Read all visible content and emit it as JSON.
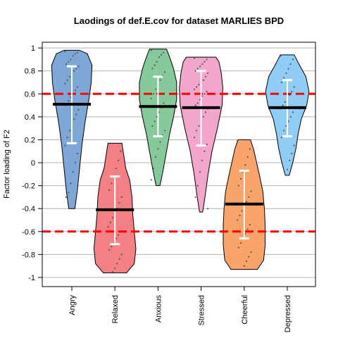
{
  "chart_data": {
    "type": "violin",
    "title": "Laodings of def.E.cov for dataset MARLIES BPD",
    "ylabel": "Factor loading of F2",
    "xlabel": "",
    "ylim": [
      -1.08,
      1.05
    ],
    "yticks": [
      1,
      0.8,
      0.6,
      0.4,
      0.2,
      0,
      -0.2,
      -0.4,
      -0.6,
      -0.8,
      -1
    ],
    "ytick_labels": [
      "1",
      "0.8",
      "0.6",
      "0.4",
      "0.2",
      "0",
      "-0.2",
      "-0.4",
      "-0.6",
      "-0.8",
      "-1"
    ],
    "grid": true,
    "reference_lines": [
      0.6,
      -0.6
    ],
    "reference_line_color": "#ff0000",
    "categories": [
      "Angry",
      "Relaxed",
      "Anxious",
      "Stressed",
      "Cheerful",
      "Depressed"
    ],
    "colors": [
      "#7ea6d6",
      "#f47f85",
      "#86c99a",
      "#f2a6cc",
      "#f8a46b",
      "#8fcdf6"
    ],
    "means": [
      0.51,
      -0.41,
      0.49,
      0.48,
      -0.36,
      0.48
    ],
    "sd_low": [
      0.17,
      -0.71,
      0.23,
      0.15,
      -0.66,
      0.23
    ],
    "sd_high": [
      0.84,
      -0.12,
      0.75,
      0.8,
      -0.07,
      0.72
    ],
    "mins": [
      -0.4,
      -0.96,
      -0.2,
      -0.43,
      -0.93,
      -0.11
    ],
    "maxs": [
      0.98,
      0.17,
      0.99,
      0.92,
      0.2,
      0.94
    ],
    "density": [
      [
        [
          -0.4,
          0.08
        ],
        [
          -0.25,
          0.14
        ],
        [
          -0.05,
          0.2
        ],
        [
          0.15,
          0.26
        ],
        [
          0.35,
          0.34
        ],
        [
          0.55,
          0.44
        ],
        [
          0.7,
          0.5
        ],
        [
          0.85,
          0.52
        ],
        [
          0.95,
          0.4
        ],
        [
          0.98,
          0.2
        ]
      ],
      [
        [
          -0.96,
          0.3
        ],
        [
          -0.88,
          0.5
        ],
        [
          -0.75,
          0.54
        ],
        [
          -0.6,
          0.5
        ],
        [
          -0.45,
          0.46
        ],
        [
          -0.3,
          0.44
        ],
        [
          -0.15,
          0.38
        ],
        [
          -0.05,
          0.28
        ],
        [
          0.08,
          0.22
        ],
        [
          0.17,
          0.18
        ]
      ],
      [
        [
          -0.2,
          0.05
        ],
        [
          -0.05,
          0.14
        ],
        [
          0.1,
          0.22
        ],
        [
          0.25,
          0.3
        ],
        [
          0.4,
          0.4
        ],
        [
          0.55,
          0.48
        ],
        [
          0.7,
          0.48
        ],
        [
          0.82,
          0.4
        ],
        [
          0.92,
          0.3
        ],
        [
          0.99,
          0.22
        ]
      ],
      [
        [
          -0.43,
          0.04
        ],
        [
          -0.3,
          0.1
        ],
        [
          -0.1,
          0.18
        ],
        [
          0.1,
          0.28
        ],
        [
          0.3,
          0.42
        ],
        [
          0.5,
          0.54
        ],
        [
          0.65,
          0.56
        ],
        [
          0.78,
          0.52
        ],
        [
          0.88,
          0.46
        ],
        [
          0.92,
          0.38
        ]
      ],
      [
        [
          -0.93,
          0.34
        ],
        [
          -0.85,
          0.5
        ],
        [
          -0.72,
          0.54
        ],
        [
          -0.55,
          0.54
        ],
        [
          -0.4,
          0.52
        ],
        [
          -0.25,
          0.48
        ],
        [
          -0.12,
          0.4
        ],
        [
          0.0,
          0.32
        ],
        [
          0.12,
          0.24
        ],
        [
          0.2,
          0.16
        ]
      ],
      [
        [
          -0.11,
          0.05
        ],
        [
          0.0,
          0.14
        ],
        [
          0.12,
          0.22
        ],
        [
          0.25,
          0.28
        ],
        [
          0.38,
          0.36
        ],
        [
          0.5,
          0.5
        ],
        [
          0.62,
          0.56
        ],
        [
          0.75,
          0.48
        ],
        [
          0.86,
          0.3
        ],
        [
          0.94,
          0.18
        ]
      ]
    ],
    "points": [
      [
        0.97,
        0.96,
        0.95,
        0.93,
        0.9,
        0.88,
        0.86,
        0.84,
        0.82,
        0.8,
        0.78,
        0.75,
        0.72,
        0.69,
        0.66,
        0.63,
        0.6,
        0.57,
        0.54,
        0.5,
        0.46,
        0.42,
        0.38,
        0.33,
        0.28,
        0.22,
        0.15,
        0.08,
        0.0,
        -0.08,
        -0.18,
        -0.26,
        -0.3
      ],
      [
        0.16,
        0.1,
        0.02,
        -0.05,
        -0.12,
        -0.18,
        -0.24,
        -0.3,
        -0.35,
        -0.4,
        -0.44,
        -0.48,
        -0.52,
        -0.56,
        -0.6,
        -0.63,
        -0.66,
        -0.7,
        -0.73,
        -0.76,
        -0.8,
        -0.84,
        -0.88,
        -0.92,
        -0.95
      ],
      [
        0.98,
        0.96,
        0.94,
        0.92,
        0.88,
        0.85,
        0.82,
        0.79,
        0.76,
        0.72,
        0.68,
        0.64,
        0.6,
        0.56,
        0.52,
        0.48,
        0.44,
        0.4,
        0.36,
        0.32,
        0.28,
        0.24,
        0.18,
        0.12,
        0.05,
        -0.05,
        -0.15
      ],
      [
        0.91,
        0.9,
        0.88,
        0.86,
        0.84,
        0.82,
        0.8,
        0.78,
        0.75,
        0.72,
        0.7,
        0.68,
        0.66,
        0.64,
        0.62,
        0.6,
        0.58,
        0.55,
        0.52,
        0.5,
        0.47,
        0.44,
        0.4,
        0.36,
        0.32,
        0.28,
        0.22,
        0.16,
        0.1,
        0.02,
        -0.08,
        -0.2,
        -0.3,
        -0.4
      ],
      [
        0.19,
        0.12,
        0.05,
        -0.02,
        -0.08,
        -0.14,
        -0.2,
        -0.25,
        -0.3,
        -0.34,
        -0.38,
        -0.42,
        -0.46,
        -0.5,
        -0.54,
        -0.58,
        -0.62,
        -0.66,
        -0.7,
        -0.74,
        -0.78,
        -0.82,
        -0.86,
        -0.9
      ],
      [
        0.93,
        0.9,
        0.86,
        0.82,
        0.78,
        0.74,
        0.7,
        0.66,
        0.62,
        0.59,
        0.56,
        0.53,
        0.5,
        0.47,
        0.44,
        0.4,
        0.36,
        0.32,
        0.28,
        0.22,
        0.15,
        0.08,
        0.02,
        -0.06
      ]
    ]
  }
}
